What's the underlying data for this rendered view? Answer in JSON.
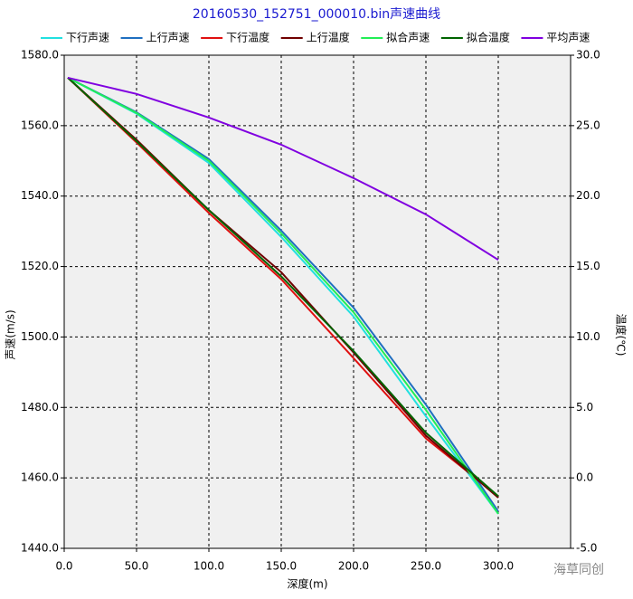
{
  "chart_data": {
    "type": "line",
    "title": "20160530_152751_000010.bin声速曲线",
    "x_label": "深度(m)",
    "y_label": "声速(m/s)",
    "y2_label": "温度(℃)",
    "legend": "top",
    "grid": true,
    "x": [
      2.5,
      50,
      100,
      150,
      200,
      250,
      300
    ],
    "xlim": [
      0,
      350
    ],
    "xticks": [
      {
        "value": 0,
        "label": "0.0"
      },
      {
        "value": 50,
        "label": "50.0"
      },
      {
        "value": 100,
        "label": "100.0"
      },
      {
        "value": 150,
        "label": "150.0"
      },
      {
        "value": 200,
        "label": "200.0"
      },
      {
        "value": 250,
        "label": "250.0"
      },
      {
        "value": 300,
        "label": "300.0"
      }
    ],
    "ylim": [
      1440,
      1580
    ],
    "yticks": [
      {
        "value": 1440,
        "label": "1440.0"
      },
      {
        "value": 1460,
        "label": "1460.0"
      },
      {
        "value": 1480,
        "label": "1480.0"
      },
      {
        "value": 1500,
        "label": "1500.0"
      },
      {
        "value": 1520,
        "label": "1520.0"
      },
      {
        "value": 1540,
        "label": "1540.0"
      },
      {
        "value": 1560,
        "label": "1560.0"
      },
      {
        "value": 1580,
        "label": "1580.0"
      }
    ],
    "y2lim": [
      -5,
      30
    ],
    "y2ticks": [
      {
        "value": -5,
        "label": "-5.0"
      },
      {
        "value": 0,
        "label": "0.0"
      },
      {
        "value": 5,
        "label": "5.0"
      },
      {
        "value": 10,
        "label": "10.0"
      },
      {
        "value": 15,
        "label": "15.0"
      },
      {
        "value": 20,
        "label": "20.0"
      },
      {
        "value": 25,
        "label": "25.0"
      },
      {
        "value": 30,
        "label": "30.0"
      }
    ],
    "series": [
      {
        "name": "下行声速",
        "color": "#22e0e0",
        "values": [
          1573.6,
          1563.4,
          1549.4,
          1528.4,
          1505.8,
          1477.5,
          1449.8
        ]
      },
      {
        "name": "上行声速",
        "color": "#1f6fc0",
        "values": [
          1573.6,
          1563.8,
          1550.5,
          1530.2,
          1508.3,
          1480.8,
          1450.5
        ]
      },
      {
        "name": "下行温度",
        "color": "#e01010",
        "axis": "y2",
        "values": [
          28.4,
          23.8,
          18.8,
          14.1,
          8.5,
          2.8,
          -1.3
        ]
      },
      {
        "name": "上行温度",
        "color": "#700000",
        "axis": "y2",
        "values": [
          28.4,
          24.0,
          19.0,
          14.6,
          8.9,
          3.0,
          -1.4
        ]
      },
      {
        "name": "拟合声速",
        "color": "#22ee55",
        "values": [
          1573.6,
          1563.6,
          1550.0,
          1529.4,
          1507.0,
          1479.3,
          1449.8
        ]
      },
      {
        "name": "拟合温度",
        "color": "#006400",
        "axis": "y2",
        "values": [
          28.4,
          23.9,
          19.0,
          14.3,
          9.0,
          3.2,
          -1.3
        ]
      },
      {
        "name": "平均声速",
        "color": "#8000e0",
        "values": [
          1573.6,
          1569.0,
          1562.3,
          1554.6,
          1545.1,
          1534.8,
          1521.9
        ]
      }
    ]
  },
  "watermark": "海草同创"
}
